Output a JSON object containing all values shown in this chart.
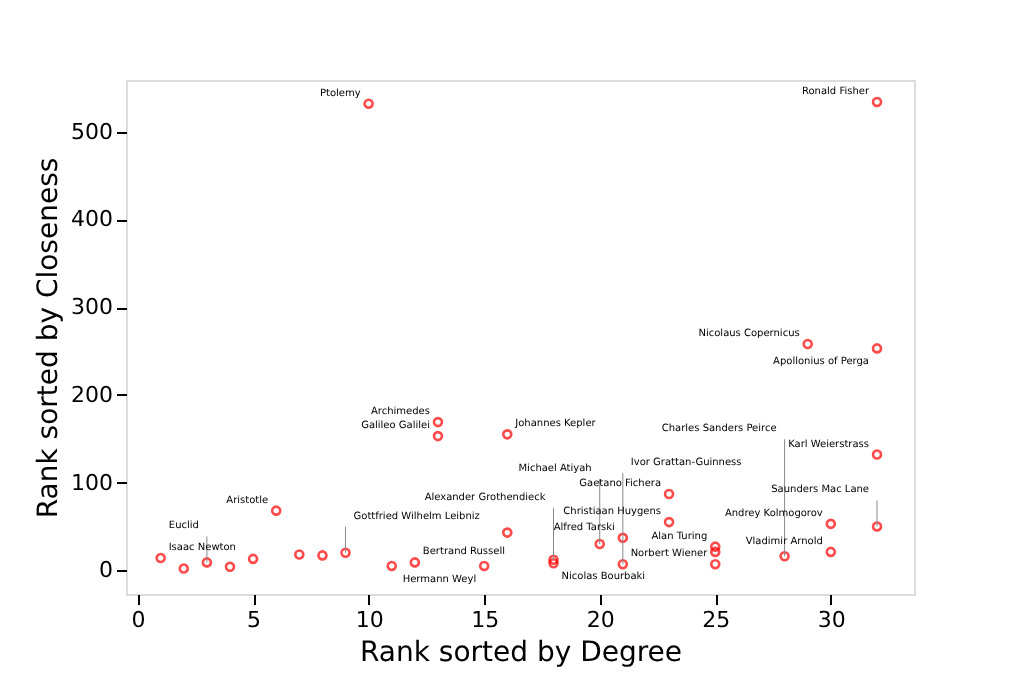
{
  "chart_data": {
    "type": "scatter",
    "xlabel": "Rank sorted by Degree",
    "ylabel": "Rank sorted by Closeness",
    "marker": "circle",
    "grid": false,
    "series": [
      {
        "color": "#ff0000",
        "x": [
          10,
          32,
          29,
          32,
          13,
          13,
          16,
          32,
          23,
          23,
          6,
          1,
          2,
          3,
          4,
          5,
          7,
          8,
          9,
          11,
          12,
          15,
          16,
          18,
          18,
          20,
          21,
          21,
          25,
          25,
          25,
          28,
          30,
          30,
          32
        ],
        "values": [
          532,
          534,
          258,
          253,
          169,
          153,
          155,
          132,
          87,
          55,
          68,
          14,
          2,
          9,
          4,
          13,
          18,
          17,
          20,
          5,
          9,
          5,
          43,
          12,
          8,
          30,
          37,
          7,
          27,
          21,
          7,
          16,
          53,
          21,
          50
        ]
      }
    ],
    "xlim": [
      -0.5,
      33.6
    ],
    "xticks": [
      0,
      5,
      10,
      15,
      20,
      25,
      30
    ],
    "ylim": [
      -27,
      559
    ],
    "yticks": [
      0,
      100,
      200,
      300,
      400,
      500
    ],
    "annotations": [
      {
        "text": "Ptolemy",
        "x": 10,
        "y": 532
      },
      {
        "text": "Ronald Fisher",
        "x": 32,
        "y": 534
      },
      {
        "text": "Nicolaus Copernicus",
        "x": 29,
        "y": 258
      },
      {
        "text": "Apollonius of Perga",
        "x": 32,
        "y": 253
      },
      {
        "text": "Archimedes",
        "x": 13,
        "y": 169
      },
      {
        "text": "Galileo Galilei",
        "x": 13,
        "y": 153
      },
      {
        "text": "Johannes Kepler",
        "x": 16,
        "y": 155
      },
      {
        "text": "Karl Weierstrass",
        "x": 32,
        "y": 132
      },
      {
        "text": "Gaetano Fichera",
        "x": 23,
        "y": 87
      },
      {
        "text": "Christiaan Huygens",
        "x": 23,
        "y": 55
      },
      {
        "text": "Aristotle",
        "x": 6,
        "y": 68
      },
      {
        "text": "Isaac Newton",
        "x": 1,
        "y": 14
      },
      {
        "text": "Euclid",
        "x": 3,
        "y": 9
      },
      {
        "text": "Gottfried Wilhelm Leibniz",
        "x": 9,
        "y": 20
      },
      {
        "text": "Bertrand Russell",
        "x": 12,
        "y": 9
      },
      {
        "text": "Hermann Weyl",
        "x": 15,
        "y": 5
      },
      {
        "text": "Alexander Grothendieck",
        "x": 18,
        "y": 12
      },
      {
        "text": "Nicolas Bourbaki",
        "x": 18,
        "y": 8
      },
      {
        "text": "Michael Atiyah",
        "x": 20,
        "y": 30
      },
      {
        "text": "Alfred Tarski",
        "x": 21,
        "y": 37
      },
      {
        "text": "Ivor Grattan-Guinness",
        "x": 21,
        "y": 7
      },
      {
        "text": "Alan Turing",
        "x": 25,
        "y": 27
      },
      {
        "text": "Norbert Wiener",
        "x": 25,
        "y": 7
      },
      {
        "text": "Charles Sanders Peirce",
        "x": 28,
        "y": 16
      },
      {
        "text": "Vladimir Arnold",
        "x": 30,
        "y": 21
      },
      {
        "text": "Andrey Kolmogorov",
        "x": 30,
        "y": 53
      },
      {
        "text": "Saunders Mac Lane",
        "x": 32,
        "y": 50
      }
    ]
  }
}
